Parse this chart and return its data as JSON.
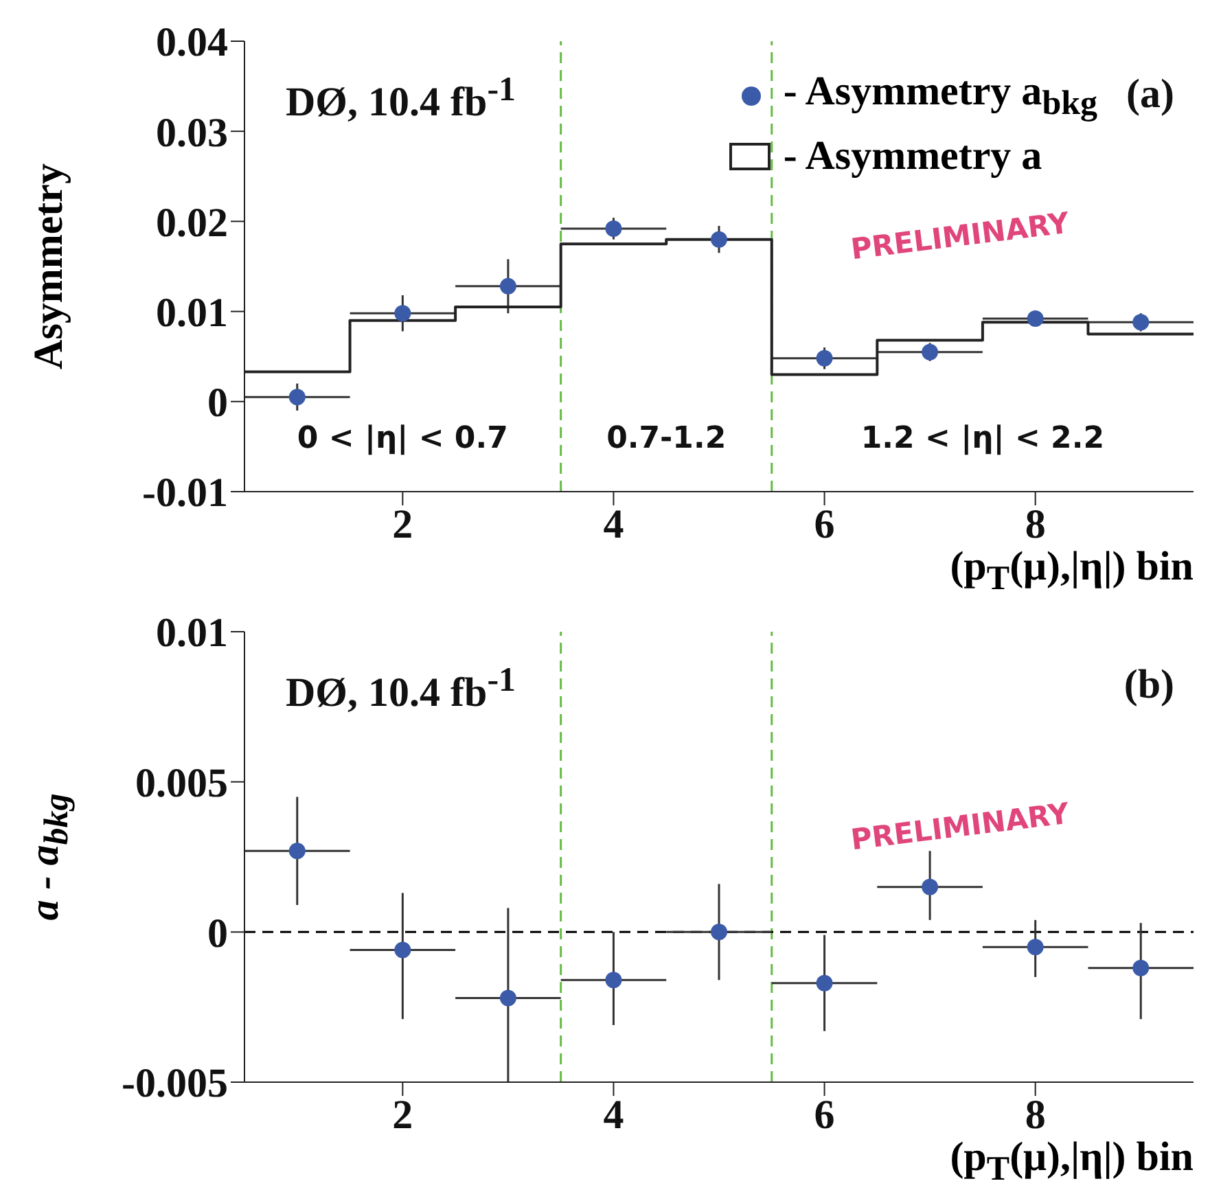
{
  "chart_data": [
    {
      "type": "scatter",
      "xlabel": "(p$_{T}$(μ),|η|) bin",
      "ylabel": "Asymmetry",
      "xlim": [
        0.5,
        9.5
      ],
      "xticks": [
        2,
        4,
        6,
        8
      ],
      "ylim": [
        -0.01,
        0.04
      ],
      "yticks": [
        -0.01,
        0,
        0.01,
        0.02,
        0.03,
        0.04
      ],
      "grid": false,
      "legend": "top right",
      "marker": "circle",
      "series": [
        {
          "name": "- Asymmetry a$_{bkg}$",
          "color": "#3b5ba9",
          "x": [
            1,
            2,
            3,
            4,
            5,
            6,
            7,
            8,
            9
          ],
          "values": [
            0.0005,
            0.0098,
            0.0128,
            0.0192,
            0.018,
            0.0048,
            0.0055,
            0.0092,
            0.0088
          ],
          "errors": [
            0.0015,
            0.002,
            0.003,
            0.0012,
            0.0015,
            0.0012,
            0.001,
            null,
            0.001
          ],
          "xerrors": [
            0.5,
            0.5,
            0.5,
            0.5,
            0.5,
            0.5,
            0.5,
            0.5,
            0.5
          ]
        },
        {
          "name": "- Asymmetry a",
          "type": "histogram",
          "color": "#222222",
          "line_style": "solid",
          "bins": [
            0.5,
            1.5,
            2.5,
            3.5,
            4.5,
            5.5,
            6.5,
            7.5,
            8.5,
            9.5
          ],
          "values": [
            0.0033,
            0.009,
            0.0105,
            0.0175,
            0.018,
            0.003,
            0.0068,
            0.0088,
            0.0075
          ]
        }
      ],
      "ref_lines": [
        {
          "axis": "x",
          "value": 3.5,
          "color": "#66bb44",
          "line_style": "dashed"
        },
        {
          "axis": "x",
          "value": 5.5,
          "color": "#66bb44",
          "line_style": "dashed"
        }
      ],
      "annotations": [
        "DØ, 10.4 fb$^{-1}$",
        "(a)",
        "PRELIMINARY",
        "0 < |η| < 0.7",
        "0.7-1.2",
        "1.2 < |η| < 2.2"
      ]
    },
    {
      "type": "scatter",
      "xlabel": "(p$_{T}$(μ),|η|) bin",
      "ylabel": "a - a$_{bkg}$",
      "xlim": [
        0.5,
        9.5
      ],
      "xticks": [
        2,
        4,
        6,
        8
      ],
      "ylim": [
        -0.005,
        0.01
      ],
      "yticks": [
        -0.005,
        0,
        0.005,
        0.01
      ],
      "grid": false,
      "legend": false,
      "marker": "circle",
      "series": [
        {
          "color": "#3b5ba9",
          "x": [
            1,
            2,
            3,
            4,
            5,
            6,
            7,
            8,
            9
          ],
          "values": [
            0.0027,
            -0.0006,
            -0.0022,
            -0.0016,
            0,
            -0.0017,
            0.0015,
            -0.0005,
            -0.0012
          ],
          "errors": [
            [
              0.0009,
              0.0045
            ],
            [
              -0.0029,
              0.0013
            ],
            [
              -0.005,
              0.0008
            ],
            [
              -0.0031,
              0
            ],
            [
              -0.0016,
              0.0016
            ],
            [
              -0.0033,
              -0.0001
            ],
            [
              0.0004,
              0.0027
            ],
            [
              -0.0015,
              0.0004
            ],
            [
              -0.0029,
              0.0003
            ]
          ],
          "xerrors": [
            0.5,
            0.5,
            0.5,
            0.5,
            0.5,
            0.5,
            0.5,
            0.5,
            0.5
          ]
        }
      ],
      "ref_lines": [
        {
          "axis": "x",
          "value": 3.5,
          "color": "#66bb44",
          "line_style": "dashed"
        },
        {
          "axis": "x",
          "value": 5.5,
          "color": "#66bb44",
          "line_style": "dashed"
        },
        {
          "axis": "y",
          "value": 0,
          "color": "#000000",
          "line_style": "dashed"
        }
      ],
      "annotations": [
        "DØ, 10.4 fb$^{-1}$",
        "(b)",
        "PRELIMINARY"
      ]
    }
  ]
}
